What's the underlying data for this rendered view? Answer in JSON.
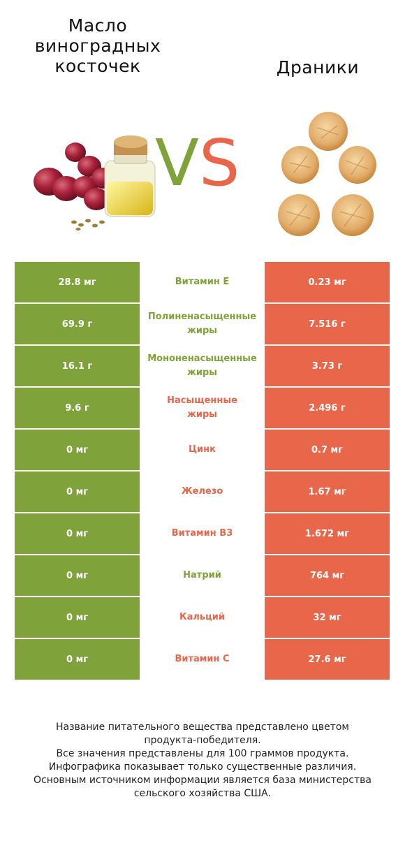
{
  "header": {
    "left_title": [
      "Масло",
      "виноградных",
      "косточек"
    ],
    "right_title": "Драники",
    "vs_v": "V",
    "vs_s": "S"
  },
  "colors": {
    "left": "#7fa33a",
    "right": "#e8664a"
  },
  "rows": [
    {
      "nutrient": [
        "Витамин E"
      ],
      "left": "28.8 мг",
      "right": "0.23 мг",
      "winner": "left"
    },
    {
      "nutrient": [
        "Полиненасыщенные",
        "жиры"
      ],
      "left": "69.9 г",
      "right": "7.516 г",
      "winner": "left"
    },
    {
      "nutrient": [
        "Мононенасыщенные",
        "жиры"
      ],
      "left": "16.1 г",
      "right": "3.73 г",
      "winner": "left"
    },
    {
      "nutrient": [
        "Насыщенные",
        "жиры"
      ],
      "left": "9.6 г",
      "right": "2.496 г",
      "winner": "right"
    },
    {
      "nutrient": [
        "Цинк"
      ],
      "left": "0 мг",
      "right": "0.7 мг",
      "winner": "right"
    },
    {
      "nutrient": [
        "Железо"
      ],
      "left": "0 мг",
      "right": "1.67 мг",
      "winner": "right"
    },
    {
      "nutrient": [
        "Витамин B3"
      ],
      "left": "0 мг",
      "right": "1.672 мг",
      "winner": "right"
    },
    {
      "nutrient": [
        "Натрий"
      ],
      "left": "0 мг",
      "right": "764 мг",
      "winner": "left"
    },
    {
      "nutrient": [
        "Кальций"
      ],
      "left": "0 мг",
      "right": "32 мг",
      "winner": "right"
    },
    {
      "nutrient": [
        "Витамин C"
      ],
      "left": "0 мг",
      "right": "27.6 мг",
      "winner": "right"
    }
  ],
  "footer": [
    "Название питательного вещества представлено цветом",
    "продукта-победителя.",
    "Все значения представлены для 100 граммов продукта.",
    "Инфографика показывает только существенные различия.",
    "Основным источником информации является база министерства",
    "сельского хозяйства США."
  ]
}
